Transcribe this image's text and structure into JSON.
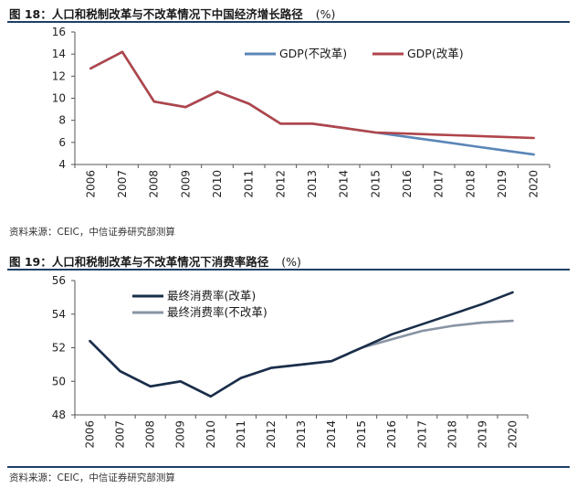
{
  "figure1": {
    "title": "图 18：人口和税制改革与不改革情况下中国经济增长路径",
    "unit": "(%)",
    "source": "资料来源：CEIC，中信证券研究部测算"
  },
  "figure2": {
    "title": "图 19：人口和税制改革与不改革情况下消费率路径",
    "unit": "(%)",
    "source": "资料来源：CEIC，中信证券研究部测算"
  },
  "chart_data": [
    {
      "type": "line",
      "title": "人口和税制改革与不改革情况下中国经济增长路径",
      "xlabel": "",
      "ylabel": "(%)",
      "categories": [
        "2006",
        "2007",
        "2008",
        "2009",
        "2010",
        "2011",
        "2012",
        "2013",
        "2014",
        "2015",
        "2016",
        "2017",
        "2018",
        "2019",
        "2020"
      ],
      "ylim": [
        4,
        16
      ],
      "yticks": [
        4,
        6,
        8,
        10,
        12,
        14,
        16
      ],
      "legend_position": "top-right",
      "series": [
        {
          "name": "GDP(不改革)",
          "color": "#5b86b8",
          "values": [
            12.7,
            14.2,
            9.7,
            9.2,
            10.6,
            9.5,
            7.7,
            7.7,
            7.3,
            6.9,
            6.5,
            6.1,
            5.7,
            5.3,
            4.9
          ]
        },
        {
          "name": "GDP(改革)",
          "color": "#b0454b",
          "values": [
            12.7,
            14.2,
            9.7,
            9.2,
            10.6,
            9.5,
            7.7,
            7.7,
            7.3,
            6.9,
            6.8,
            6.7,
            6.6,
            6.5,
            6.4
          ]
        }
      ]
    },
    {
      "type": "line",
      "title": "人口和税制改革与不改革情况下消费率路径",
      "xlabel": "",
      "ylabel": "(%)",
      "categories": [
        "2006",
        "2007",
        "2008",
        "2009",
        "2010",
        "2011",
        "2012",
        "2013",
        "2014",
        "2015",
        "2016",
        "2017",
        "2018",
        "2019",
        "2020"
      ],
      "ylim": [
        48,
        56
      ],
      "yticks": [
        48,
        50,
        52,
        54,
        56
      ],
      "legend_position": "top-left",
      "series": [
        {
          "name": "最终消费率(改革)",
          "color": "#1a2e4a",
          "values": [
            52.4,
            50.6,
            49.7,
            50.0,
            49.1,
            50.2,
            50.8,
            51.0,
            51.2,
            52.0,
            52.8,
            53.4,
            54.0,
            54.6,
            55.3
          ]
        },
        {
          "name": "最终消费率(不改革)",
          "color": "#8794a3",
          "values": [
            52.4,
            50.6,
            49.7,
            50.0,
            49.1,
            50.2,
            50.8,
            51.0,
            51.2,
            52.0,
            52.5,
            53.0,
            53.3,
            53.5,
            53.6
          ]
        }
      ]
    }
  ]
}
